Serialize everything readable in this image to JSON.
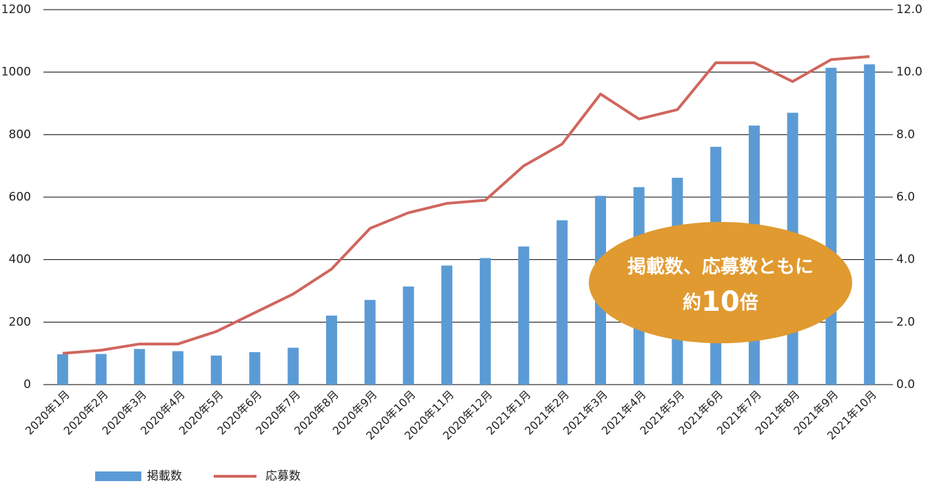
{
  "chart_data": {
    "type": "bar-line",
    "categories": [
      "2020年1月",
      "2020年2月",
      "2020年3月",
      "2020年4月",
      "2020年5月",
      "2020年6月",
      "2020年7月",
      "2020年8月",
      "2020年9月",
      "2020年10月",
      "2020年11月",
      "2020年12月",
      "2021年1月",
      "2021年2月",
      "2021年3月",
      "2021年4月",
      "2021年5月",
      "2021年6月",
      "2021年7月",
      "2021年8月",
      "2021年9月",
      "2021年10月"
    ],
    "series": [
      {
        "name": "掲載数",
        "type": "bar",
        "color": "#5b9bd5",
        "values": [
          97,
          98,
          114,
          107,
          93,
          104,
          118,
          221,
          271,
          314,
          381,
          405,
          442,
          526,
          604,
          632,
          662,
          761,
          829,
          870,
          1014,
          1025
        ]
      },
      {
        "name": "応募数",
        "type": "line",
        "axis": "y2",
        "color": "#d0665e",
        "values": [
          1.0,
          1.1,
          1.3,
          1.3,
          1.7,
          2.3,
          2.9,
          3.7,
          5.0,
          5.5,
          5.8,
          5.9,
          7.0,
          7.7,
          9.3,
          8.5,
          8.8,
          10.3,
          10.3,
          9.7,
          10.4,
          10.5
        ]
      }
    ],
    "ylim": [
      0,
      1200
    ],
    "yticks": [
      0,
      200,
      400,
      600,
      800,
      1000,
      1200
    ],
    "y2lim": [
      0,
      12
    ],
    "y2ticks": [
      {
        "value": 0,
        "label": "0.0"
      },
      {
        "value": 2,
        "label": "2.0"
      },
      {
        "value": 4,
        "label": "4.0"
      },
      {
        "value": 6,
        "label": "6.0"
      },
      {
        "value": 8,
        "label": "8.0"
      },
      {
        "value": 10,
        "label": "10.0"
      },
      {
        "value": 12,
        "label": "12.0"
      }
    ],
    "grid": true,
    "legend": "bottom",
    "annotation": [
      "掲載数、応募数ともに",
      "約",
      "10",
      "倍"
    ],
    "annotation_color": "#e09a30"
  }
}
